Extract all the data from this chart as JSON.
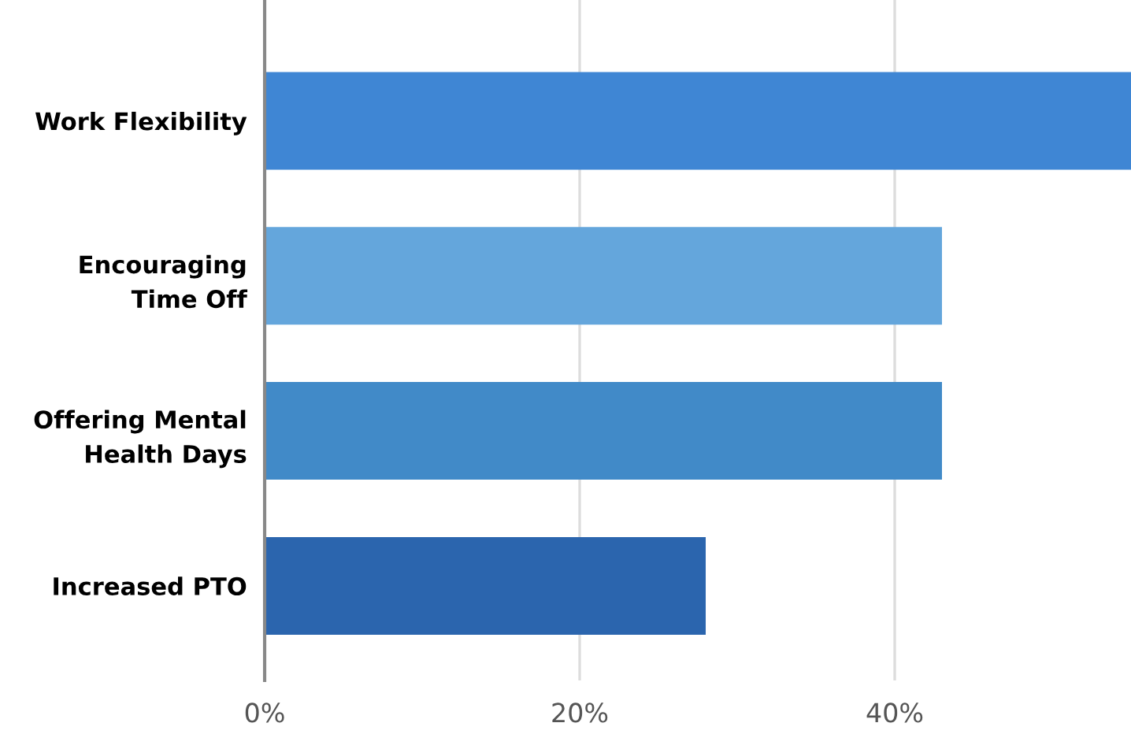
{
  "chart_data": {
    "type": "bar",
    "orientation": "horizontal",
    "categories": [
      "Work Flexibility",
      "Encouraging\nTime Off",
      "Offering Mental\nHealth Days",
      "Increased PTO"
    ],
    "values": [
      55,
      43,
      43,
      28
    ],
    "colors": [
      "#3f86d4",
      "#64a6dc",
      "#418ac8",
      "#2b65ae"
    ],
    "xlim": [
      0,
      55
    ],
    "xticks": [
      {
        "value": 0,
        "label": "0%"
      },
      {
        "value": 20,
        "label": "20%"
      },
      {
        "value": 40,
        "label": "40%"
      }
    ],
    "grid": "x"
  }
}
